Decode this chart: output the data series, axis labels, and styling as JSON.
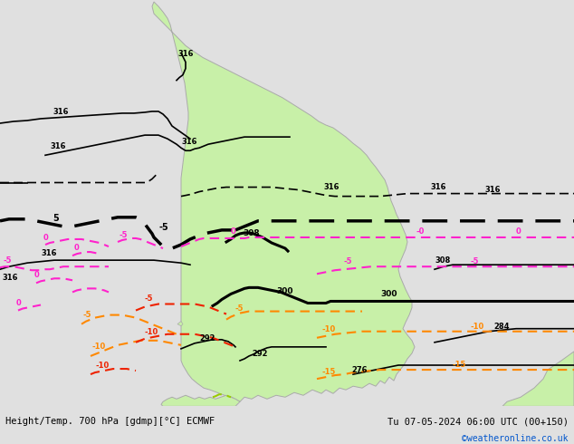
{
  "title_left": "Height/Temp. 700 hPa [gdmp][°C] ECMWF",
  "title_right": "Tu 07-05-2024 06:00 UTC (00+150)",
  "credit": "©weatheronline.co.uk",
  "bg_color": "#e0e0e0",
  "land_color": "#c8f0a8",
  "border_color": "#aaaaaa",
  "ocean_color": "#e0e0e0",
  "bottom_bar_color": "#ffffff",
  "text_color_black": "#000000",
  "text_color_blue": "#0055cc",
  "contour_black": "#000000",
  "contour_pink": "#ff22cc",
  "contour_orange": "#ff8800",
  "contour_red": "#ee2200",
  "contour_yg": "#99cc00",
  "figsize": [
    6.34,
    4.9
  ],
  "dpi": 100
}
